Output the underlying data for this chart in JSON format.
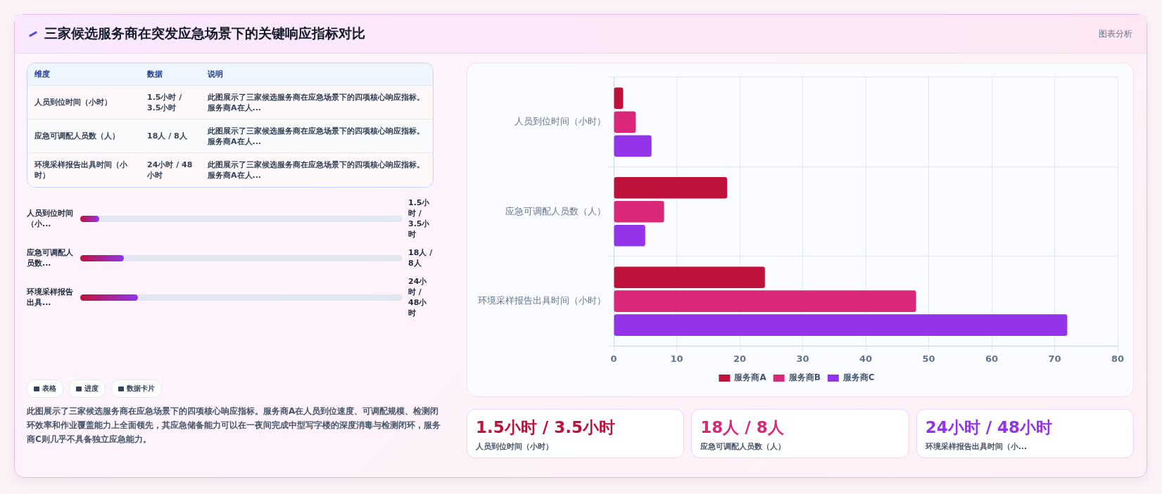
{
  "chart_data": [
    {
      "type": "other",
      "title": "三家候选服务商在突发应急场景下的关键响应指标对比",
      "annotations": [
        "图表分析",
        "维度",
        "数据",
        "说明",
        "人员到位时间（小时）",
        "1.5小时 / 3.5小时",
        "此图展示了三家候选服务商在应急场景下的四项核心响应指标。服务商A在人...",
        "应急可调配人员数（人）",
        "18人 / 8人",
        "此图展示了三家候选服务商在应急场景下的四项核心响应指标。服务商A在人...",
        "环境采样报告出具时间（小时）",
        "24小时 / 48小时",
        "此图展示了三家候选服务商在应急场景下的四项核心响应指标。服务商A在人...",
        "人员到位时间（小...",
        "1.5小时 / 3.5小时",
        "应急可调配人员数...",
        "18人 / 8人",
        "环境采样报告出具...",
        "24小时 / 48小时",
        "表格",
        "进度",
        "数据卡片",
        "此图展示了三家候选服务商在应急场景下的四项核心响应指标。服务商A在人员到位速度、可调配规模、检测闭环效率和作业覆盖能力上全面领先，其应急储备能力可以在一夜间完成中型写字楼的深度消毒与检测闭环，服务商C则几乎不具备独立应急能力。",
        "1.5小时 / 3.5小时",
        "人员到位时间（小时）",
        "18人 / 8人",
        "应急可调配人员数（人）",
        "24小时 / 48小时",
        "环境采样报告出具时间（小..."
      ]
    },
    {
      "type": "bar",
      "orientation": "horizontal",
      "categories": [
        "人员到位时间（小时）",
        "应急可调配人员数（人）",
        "环境采样报告出具时间（小时）"
      ],
      "series": [
        {
          "name": "服务商A",
          "color": "#be123c",
          "values": [
            1.5,
            18,
            24
          ]
        },
        {
          "name": "服务商B",
          "color": "#db2777",
          "values": [
            3.5,
            8,
            48
          ]
        },
        {
          "name": "服务商C",
          "color": "#9333ea",
          "values": [
            6,
            5,
            72
          ]
        }
      ],
      "xlim": [
        0,
        80
      ],
      "xticks": [
        0,
        10,
        20,
        30,
        40,
        50,
        60,
        70,
        80
      ],
      "grid": true,
      "legend": "bottom"
    }
  ]
}
